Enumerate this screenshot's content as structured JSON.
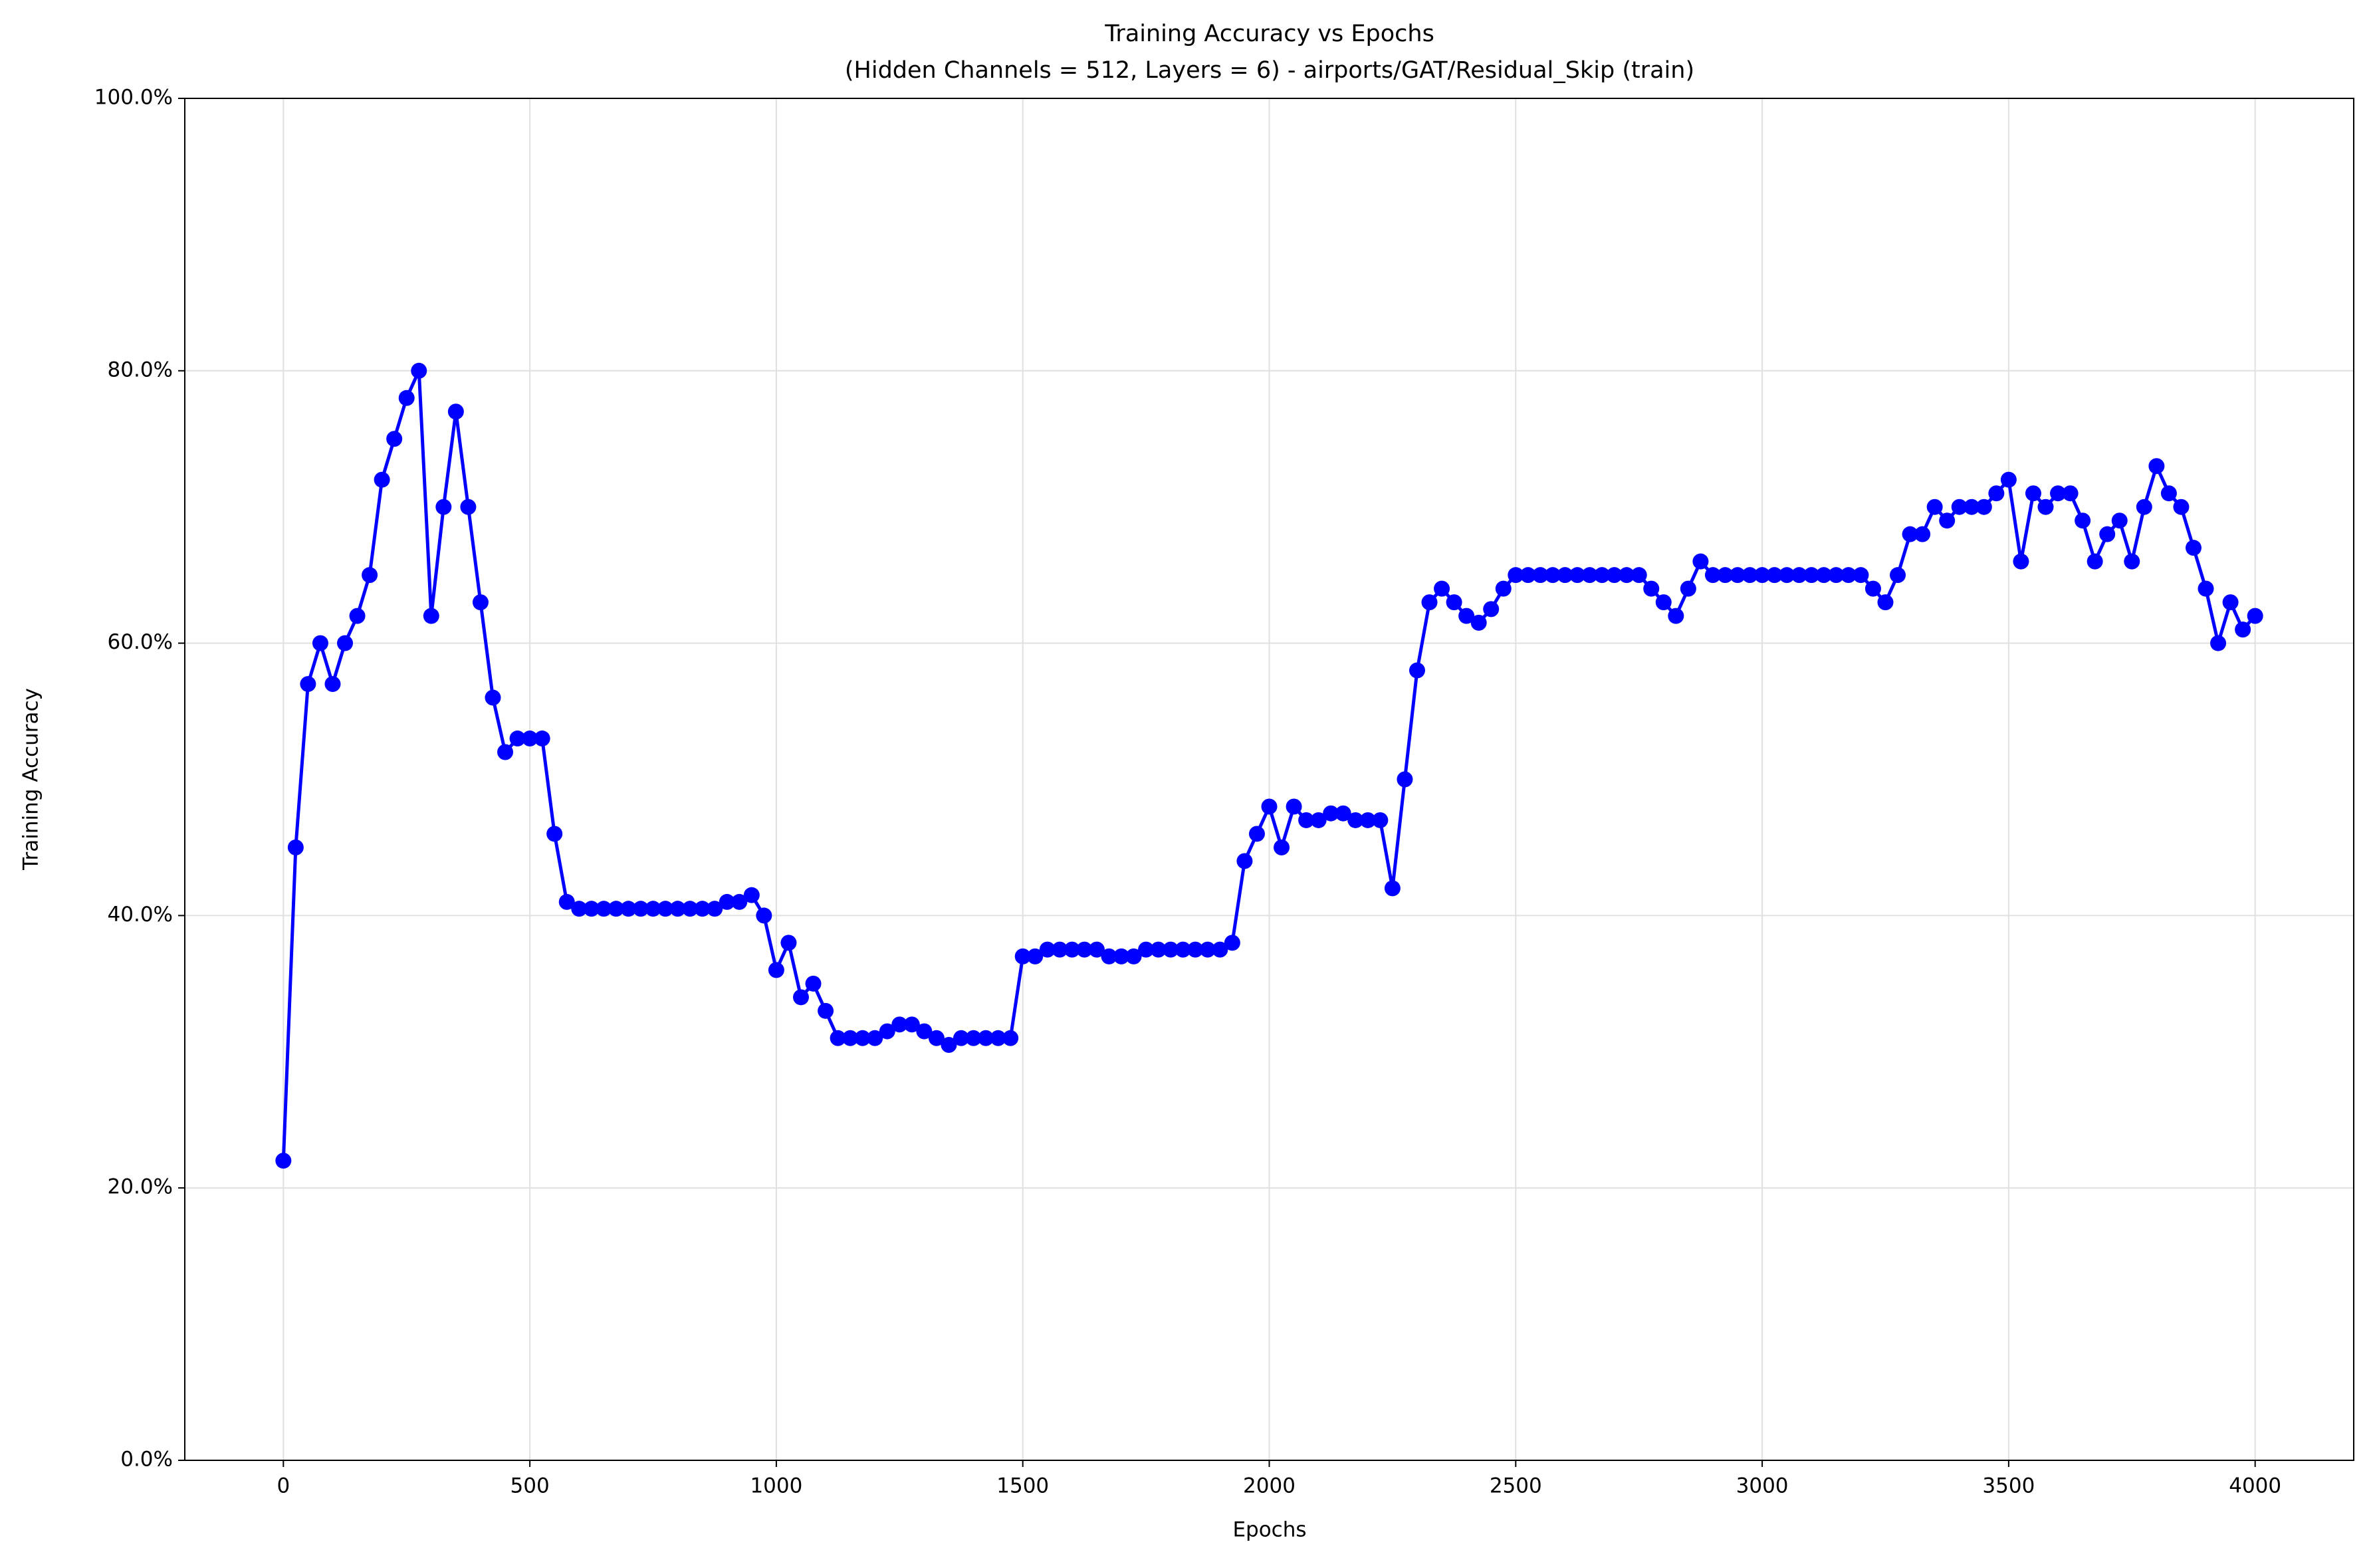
{
  "chart_data": {
    "type": "line",
    "title": "Training Accuracy vs Epochs",
    "subtitle": "(Hidden Channels = 512, Layers = 6) - airports/GAT/Residual_Skip (train)",
    "x_label": "Epochs",
    "y_label": "Training Accuracy",
    "x": [
      0,
      25,
      50,
      75,
      100,
      125,
      150,
      175,
      200,
      225,
      250,
      275,
      300,
      325,
      350,
      375,
      400,
      425,
      450,
      475,
      500,
      525,
      550,
      575,
      600,
      625,
      650,
      675,
      700,
      725,
      750,
      775,
      800,
      825,
      850,
      875,
      900,
      925,
      950,
      975,
      1000,
      1025,
      1050,
      1075,
      1100,
      1125,
      1150,
      1175,
      1200,
      1225,
      1250,
      1275,
      1300,
      1325,
      1350,
      1375,
      1400,
      1425,
      1450,
      1475,
      1500,
      1525,
      1550,
      1575,
      1600,
      1625,
      1650,
      1675,
      1700,
      1725,
      1750,
      1775,
      1800,
      1825,
      1850,
      1875,
      1900,
      1925,
      1950,
      1975,
      2000,
      2025,
      2050,
      2075,
      2100,
      2125,
      2150,
      2175,
      2200,
      2225,
      2250,
      2275,
      2300,
      2325,
      2350,
      2375,
      2400,
      2425,
      2450,
      2475,
      2500,
      2525,
      2550,
      2575,
      2600,
      2625,
      2650,
      2675,
      2700,
      2725,
      2750,
      2775,
      2800,
      2825,
      2850,
      2875,
      2900,
      2925,
      2950,
      2975,
      3000,
      3025,
      3050,
      3075,
      3100,
      3125,
      3150,
      3175,
      3200,
      3225,
      3250,
      3275,
      3300,
      3325,
      3350,
      3375,
      3400,
      3425,
      3450,
      3475,
      3500,
      3525,
      3550,
      3575,
      3600,
      3625,
      3650,
      3675,
      3700,
      3725,
      3750,
      3775,
      3800,
      3825,
      3850,
      3875,
      3900,
      3925,
      3950,
      3975,
      4000
    ],
    "series": [
      {
        "name": "Training Accuracy",
        "color": "#0000ff",
        "values": [
          22,
          45,
          57,
          60,
          57,
          60,
          62,
          65,
          72,
          75,
          78,
          80,
          62,
          70,
          77,
          70,
          63,
          56,
          52,
          53,
          53,
          53,
          46,
          41,
          40.5,
          40.5,
          40.5,
          40.5,
          40.5,
          40.5,
          40.5,
          40.5,
          40.5,
          40.5,
          40.5,
          40.5,
          41,
          41,
          41.5,
          40,
          36,
          38,
          34,
          35,
          33,
          31,
          31,
          31,
          31,
          31.5,
          32,
          32,
          31.5,
          31,
          30.5,
          31,
          31,
          31,
          31,
          31,
          37,
          37,
          37.5,
          37.5,
          37.5,
          37.5,
          37.5,
          37,
          37,
          37,
          37.5,
          37.5,
          37.5,
          37.5,
          37.5,
          37.5,
          37.5,
          38,
          44,
          46,
          48,
          45,
          48,
          47,
          47,
          47.5,
          47.5,
          47,
          47,
          47,
          42,
          50,
          58,
          63,
          64,
          63,
          62,
          61.5,
          62.5,
          64,
          65,
          65,
          65,
          65,
          65,
          65,
          65,
          65,
          65,
          65,
          65,
          64,
          63,
          62,
          64,
          66,
          65,
          65,
          65,
          65,
          65,
          65,
          65,
          65,
          65,
          65,
          65,
          65,
          65,
          64,
          63,
          65,
          68,
          68,
          70,
          69,
          70,
          70,
          70,
          71,
          72,
          66,
          71,
          70,
          71,
          71,
          69,
          66,
          68,
          69,
          66,
          70,
          73,
          71,
          70,
          67,
          64,
          60,
          63,
          61,
          62
        ]
      }
    ],
    "xlim": [
      -200,
      4200
    ],
    "ylim": [
      0,
      100
    ],
    "xticks": [
      0,
      500,
      1000,
      1500,
      2000,
      2500,
      3000,
      3500,
      4000
    ],
    "yticks": [
      {
        "value": 0,
        "label": "0.0%"
      },
      {
        "value": 20,
        "label": "20.0%"
      },
      {
        "value": 40,
        "label": "40.0%"
      },
      {
        "value": 60,
        "label": "60.0%"
      },
      {
        "value": 80,
        "label": "80.0%"
      },
      {
        "value": 100,
        "label": "100.0%"
      }
    ],
    "grid": true
  }
}
